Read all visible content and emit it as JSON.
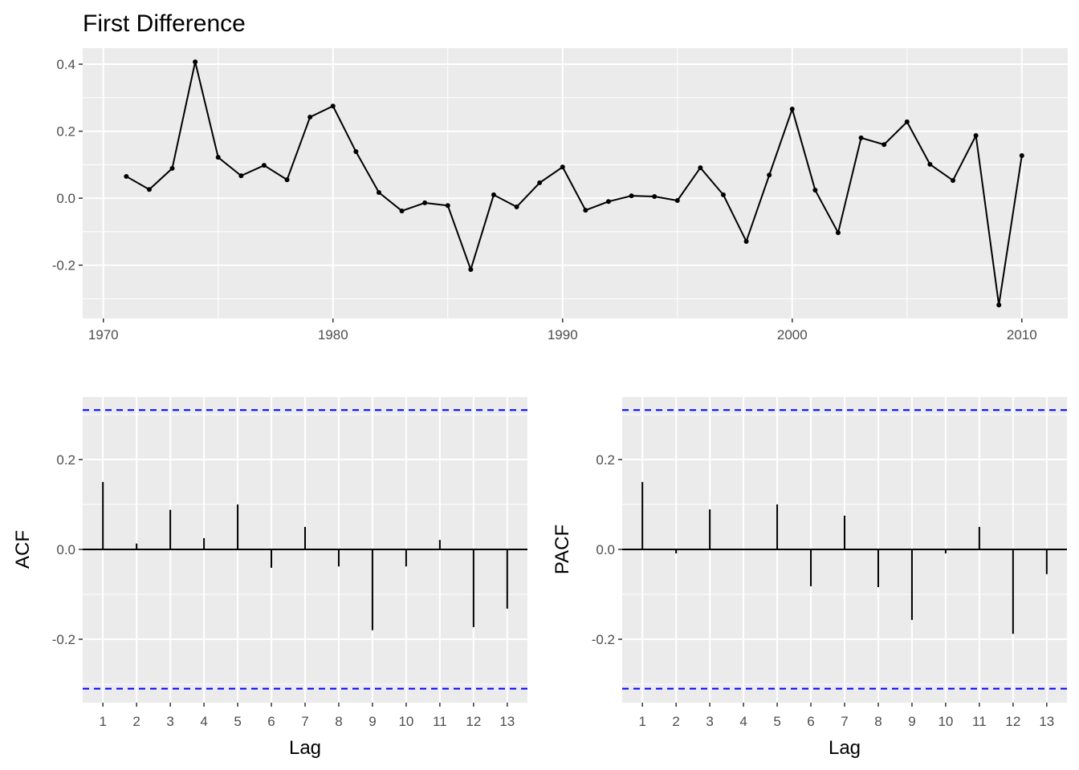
{
  "chart_data": [
    {
      "type": "line",
      "title": "First Difference",
      "xlabel": "",
      "ylabel": "",
      "x": [
        1971,
        1972,
        1973,
        1974,
        1975,
        1976,
        1977,
        1978,
        1979,
        1980,
        1981,
        1982,
        1983,
        1984,
        1985,
        1986,
        1987,
        1988,
        1989,
        1990,
        1991,
        1992,
        1993,
        1994,
        1995,
        1996,
        1997,
        1998,
        1999,
        2000,
        2001,
        2002,
        2003,
        2004,
        2005,
        2006,
        2007,
        2008,
        2009,
        2010
      ],
      "y": [
        0.065,
        0.026,
        0.089,
        0.407,
        0.122,
        0.067,
        0.098,
        0.055,
        0.242,
        0.275,
        0.139,
        0.017,
        -0.038,
        -0.014,
        -0.022,
        -0.213,
        0.01,
        -0.026,
        0.046,
        0.093,
        -0.036,
        -0.01,
        0.007,
        0.005,
        -0.007,
        0.091,
        0.01,
        -0.129,
        0.069,
        0.266,
        0.024,
        -0.103,
        0.18,
        0.16,
        0.228,
        0.101,
        0.053,
        0.187,
        -0.319,
        0.127
      ],
      "xlim": [
        1969.1,
        2012
      ],
      "ylim": [
        -0.359,
        0.448
      ],
      "xticks": [
        1970,
        1980,
        1990,
        2000,
        2010
      ],
      "xtick_labels": [
        "1970",
        "1980",
        "1990",
        "2000",
        "2010"
      ],
      "yticks": [
        -0.2,
        0.0,
        0.2,
        0.4
      ],
      "ytick_labels": [
        "-0.2",
        "0.0",
        "0.2",
        "0.4"
      ],
      "grid": true
    },
    {
      "type": "bar",
      "title": "",
      "xlabel": "Lag",
      "ylabel": "ACF",
      "lags": [
        1,
        2,
        3,
        4,
        5,
        6,
        7,
        8,
        9,
        10,
        11,
        12,
        13
      ],
      "values": [
        0.15,
        0.013,
        0.088,
        0.025,
        0.1,
        -0.041,
        0.05,
        -0.038,
        -0.18,
        -0.038,
        0.021,
        -0.173,
        -0.132
      ],
      "confidence_bound": 0.31,
      "xlim": [
        0.4,
        13.6
      ],
      "ylim": [
        -0.341,
        0.339
      ],
      "yticks": [
        -0.2,
        0.0,
        0.2
      ],
      "ytick_labels": [
        "-0.2",
        "0.0",
        "0.2"
      ],
      "xtick_labels": [
        "1",
        "2",
        "3",
        "4",
        "5",
        "6",
        "7",
        "8",
        "9",
        "10",
        "11",
        "12",
        "13"
      ],
      "grid": true
    },
    {
      "type": "bar",
      "title": "",
      "xlabel": "Lag",
      "ylabel": "PACF",
      "lags": [
        1,
        2,
        3,
        4,
        5,
        6,
        7,
        8,
        9,
        10,
        11,
        12,
        13
      ],
      "values": [
        0.15,
        -0.009,
        0.089,
        0.0,
        0.1,
        -0.082,
        0.075,
        -0.084,
        -0.157,
        -0.009,
        0.05,
        -0.188,
        -0.055
      ],
      "confidence_bound": 0.31,
      "xlim": [
        0.4,
        13.6
      ],
      "ylim": [
        -0.341,
        0.339
      ],
      "yticks": [
        -0.2,
        0.0,
        0.2
      ],
      "ytick_labels": [
        "-0.2",
        "0.0",
        "0.2"
      ],
      "xtick_labels": [
        "1",
        "2",
        "3",
        "4",
        "5",
        "6",
        "7",
        "8",
        "9",
        "10",
        "11",
        "12",
        "13"
      ],
      "grid": true
    }
  ],
  "colors": {
    "panel": "#ebebeb",
    "grid": "#ffffff",
    "series": "#000000",
    "bound": "#0000ff"
  }
}
